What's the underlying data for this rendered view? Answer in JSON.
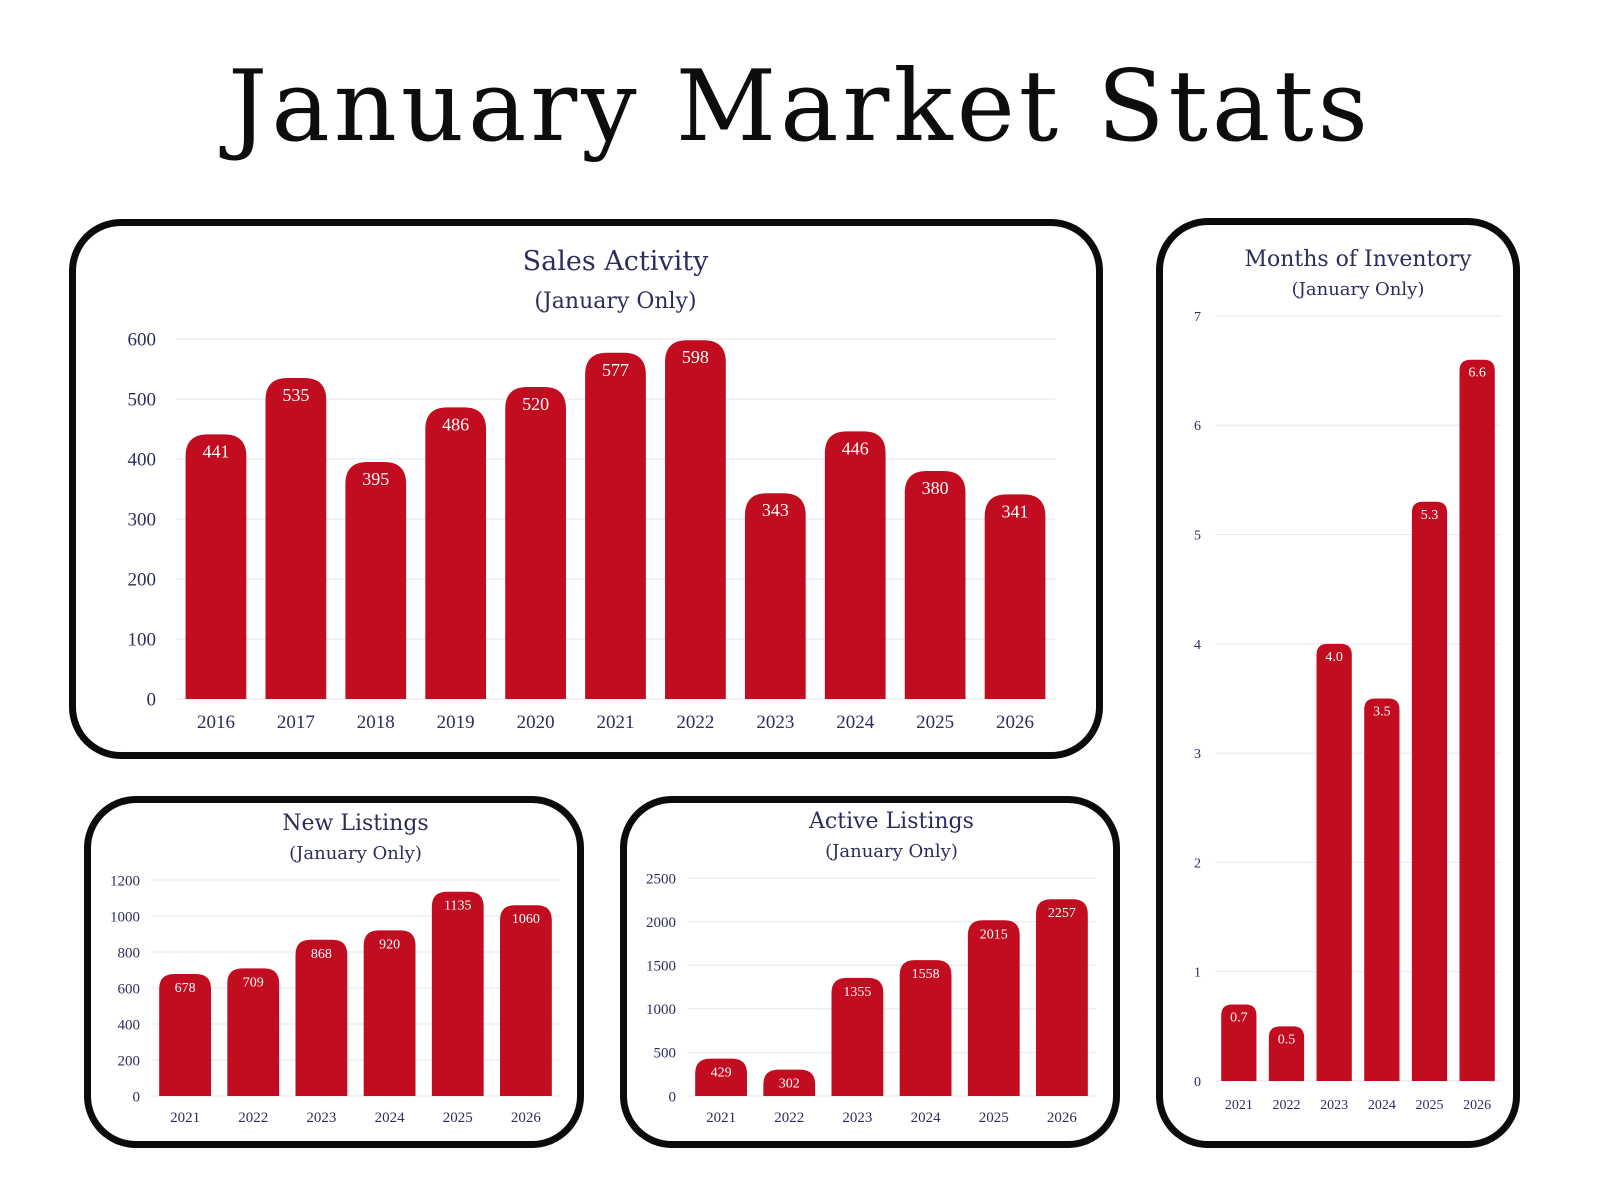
{
  "page": {
    "title": "January Market Stats"
  },
  "colors": {
    "bar": "#c10d1f",
    "text": "#2d2d5c",
    "grid": "#e6e6ee",
    "border": "#0b0b0b"
  },
  "chart_data": [
    {
      "id": "sales",
      "type": "bar",
      "title": "Sales Activity",
      "subtitle": "(January Only)",
      "categories": [
        "2016",
        "2017",
        "2018",
        "2019",
        "2020",
        "2021",
        "2022",
        "2023",
        "2024",
        "2025",
        "2026"
      ],
      "values": [
        441,
        535,
        395,
        486,
        520,
        577,
        598,
        343,
        446,
        380,
        341
      ],
      "ylim": [
        0,
        600
      ],
      "yticks": [
        0,
        100,
        200,
        300,
        400,
        500,
        600
      ],
      "grid": true
    },
    {
      "id": "new",
      "type": "bar",
      "title": "New Listings",
      "subtitle": "(January Only)",
      "categories": [
        "2021",
        "2022",
        "2023",
        "2024",
        "2025",
        "2026"
      ],
      "values": [
        678,
        709,
        868,
        920,
        1135,
        1060
      ],
      "ylim": [
        0,
        1200
      ],
      "yticks": [
        0,
        200,
        400,
        600,
        800,
        1000,
        1200
      ],
      "grid": true
    },
    {
      "id": "active",
      "type": "bar",
      "title": "Active Listings",
      "subtitle": "(January Only)",
      "categories": [
        "2021",
        "2022",
        "2023",
        "2024",
        "2025",
        "2026"
      ],
      "values": [
        429,
        302,
        1355,
        1558,
        2015,
        2257
      ],
      "ylim": [
        0,
        2500
      ],
      "yticks": [
        0,
        500,
        1000,
        1500,
        2000,
        2500
      ],
      "grid": true
    },
    {
      "id": "moi",
      "type": "bar",
      "title": "Months of Inventory",
      "subtitle": "(January Only)",
      "categories": [
        "2021",
        "2022",
        "2023",
        "2024",
        "2025",
        "2026"
      ],
      "values": [
        0.7,
        0.5,
        4.0,
        3.5,
        5.3,
        6.6
      ],
      "value_labels": [
        "0.7",
        "0.5",
        "4.0",
        "3.5",
        "5.3",
        "6.6"
      ],
      "ylim": [
        0,
        7
      ],
      "yticks": [
        0,
        1,
        2,
        3,
        4,
        5,
        6,
        7
      ],
      "grid": true
    }
  ]
}
